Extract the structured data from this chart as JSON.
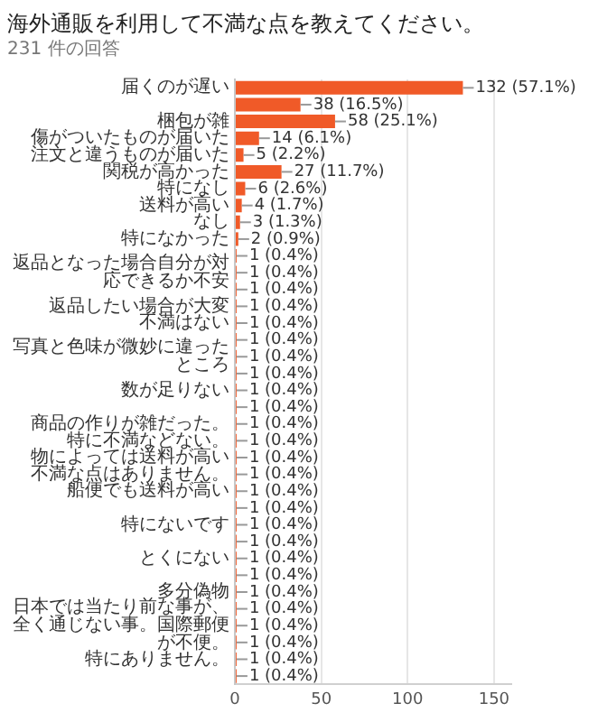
{
  "chart_data": {
    "type": "bar",
    "orientation": "horizontal",
    "title": "海外通販を利用して不満な点を教えてください。",
    "subtitle": "231 件の回答",
    "categories": [
      "届くのが遅い",
      null,
      "梱包が雑",
      "傷がついたものが届いた",
      "注文と違うものが届いた",
      "関税が高かった",
      "特になし",
      "送料が高い",
      "なし",
      "特になかった",
      null,
      "返品となった場合自分が対応できるか不安",
      null,
      "返品したい場合が大変",
      "不満はない",
      null,
      "写真と色味が微妙に違ったところ",
      null,
      "数が足りない",
      null,
      "商品の作りが雑だった。",
      "特に不満などない。",
      "物によっては送料が高い",
      "不満な点はありません。",
      "船便でも送料が高い",
      null,
      "特にないです",
      null,
      "とくにない",
      null,
      "多分偽物",
      null,
      "日本では当たり前な事が、全く通じない事。国際郵便が不便。",
      null,
      "特にありません。",
      null
    ],
    "values": [
      132,
      38,
      58,
      14,
      5,
      27,
      6,
      4,
      3,
      2,
      1,
      1,
      1,
      1,
      1,
      1,
      1,
      1,
      1,
      1,
      1,
      1,
      1,
      1,
      1,
      1,
      1,
      1,
      1,
      1,
      1,
      1,
      1,
      1,
      1,
      1
    ],
    "value_labels": [
      "132 (57.1%)",
      "38 (16.5%)",
      "58 (25.1%)",
      "14 (6.1%)",
      "5 (2.2%)",
      "27 (11.7%)",
      "6 (2.6%)",
      "4 (1.7%)",
      "3 (1.3%)",
      "2 (0.9%)",
      "1 (0.4%)",
      "1 (0.4%)",
      "1 (0.4%)",
      "1 (0.4%)",
      "1 (0.4%)",
      "1 (0.4%)",
      "1 (0.4%)",
      "1 (0.4%)",
      "1 (0.4%)",
      "1 (0.4%)",
      "1 (0.4%)",
      "1 (0.4%)",
      "1 (0.4%)",
      "1 (0.4%)",
      "1 (0.4%)",
      "1 (0.4%)",
      "1 (0.4%)",
      "1 (0.4%)",
      "1 (0.4%)",
      "1 (0.4%)",
      "1 (0.4%)",
      "1 (0.4%)",
      "1 (0.4%)",
      "1 (0.4%)",
      "1 (0.4%)",
      "1 (0.4%)"
    ],
    "color": "#f05a28",
    "xlim": [
      0,
      160
    ],
    "xticks": [
      0,
      50,
      100,
      150
    ],
    "grid": "x",
    "legend": false
  }
}
